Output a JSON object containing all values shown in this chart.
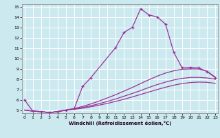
{
  "xlabel": "Windchill (Refroidissement éolien,°C)",
  "background_color": "#cce9f0",
  "grid_color": "#ffffff",
  "line_color": "#993399",
  "xlim": [
    -0.5,
    23.5
  ],
  "ylim": [
    4.5,
    15.5
  ],
  "yticks": [
    5,
    6,
    7,
    8,
    9,
    10,
    11,
    12,
    13,
    14,
    15
  ],
  "xticks": [
    0,
    1,
    2,
    3,
    4,
    5,
    6,
    7,
    8,
    9,
    10,
    11,
    12,
    13,
    14,
    15,
    16,
    17,
    18,
    19,
    20,
    21,
    22,
    23
  ],
  "line1_x": [
    0,
    1,
    2,
    3,
    4,
    5,
    6,
    7,
    8,
    11,
    12,
    13,
    14,
    15,
    16,
    17,
    18,
    19,
    20,
    21,
    22,
    23
  ],
  "line1_y": [
    6.0,
    4.9,
    4.85,
    4.75,
    4.85,
    5.0,
    5.15,
    7.3,
    8.15,
    11.1,
    12.55,
    13.05,
    14.85,
    14.25,
    14.05,
    13.35,
    10.6,
    9.1,
    9.15,
    9.1,
    8.75,
    8.15
  ],
  "line2_x": [
    0,
    1,
    2,
    3,
    4,
    5,
    6,
    7,
    8,
    9,
    10,
    11,
    12,
    13,
    14,
    15,
    16,
    17,
    18,
    19,
    20,
    21,
    22,
    23
  ],
  "line2_y": [
    5.0,
    4.9,
    4.85,
    4.75,
    4.85,
    5.0,
    5.15,
    5.35,
    5.6,
    5.88,
    6.18,
    6.5,
    6.85,
    7.2,
    7.58,
    7.95,
    8.3,
    8.6,
    8.82,
    8.97,
    9.0,
    9.0,
    8.78,
    8.2
  ],
  "line3_x": [
    0,
    1,
    2,
    3,
    4,
    5,
    6,
    7,
    8,
    9,
    10,
    11,
    12,
    13,
    14,
    15,
    16,
    17,
    18,
    19,
    20,
    21,
    22,
    23
  ],
  "line3_y": [
    5.0,
    4.9,
    4.85,
    4.75,
    4.85,
    5.0,
    5.1,
    5.25,
    5.42,
    5.62,
    5.85,
    6.08,
    6.35,
    6.62,
    6.9,
    7.2,
    7.48,
    7.72,
    7.93,
    8.08,
    8.17,
    8.18,
    8.12,
    8.0
  ],
  "line4_x": [
    0,
    1,
    2,
    3,
    4,
    5,
    6,
    7,
    8,
    9,
    10,
    11,
    12,
    13,
    14,
    15,
    16,
    17,
    18,
    19,
    20,
    21,
    22,
    23
  ],
  "line4_y": [
    5.0,
    4.9,
    4.85,
    4.75,
    4.85,
    5.0,
    5.08,
    5.18,
    5.32,
    5.48,
    5.65,
    5.85,
    6.05,
    6.28,
    6.52,
    6.76,
    7.0,
    7.22,
    7.42,
    7.58,
    7.68,
    7.72,
    7.7,
    7.6
  ]
}
